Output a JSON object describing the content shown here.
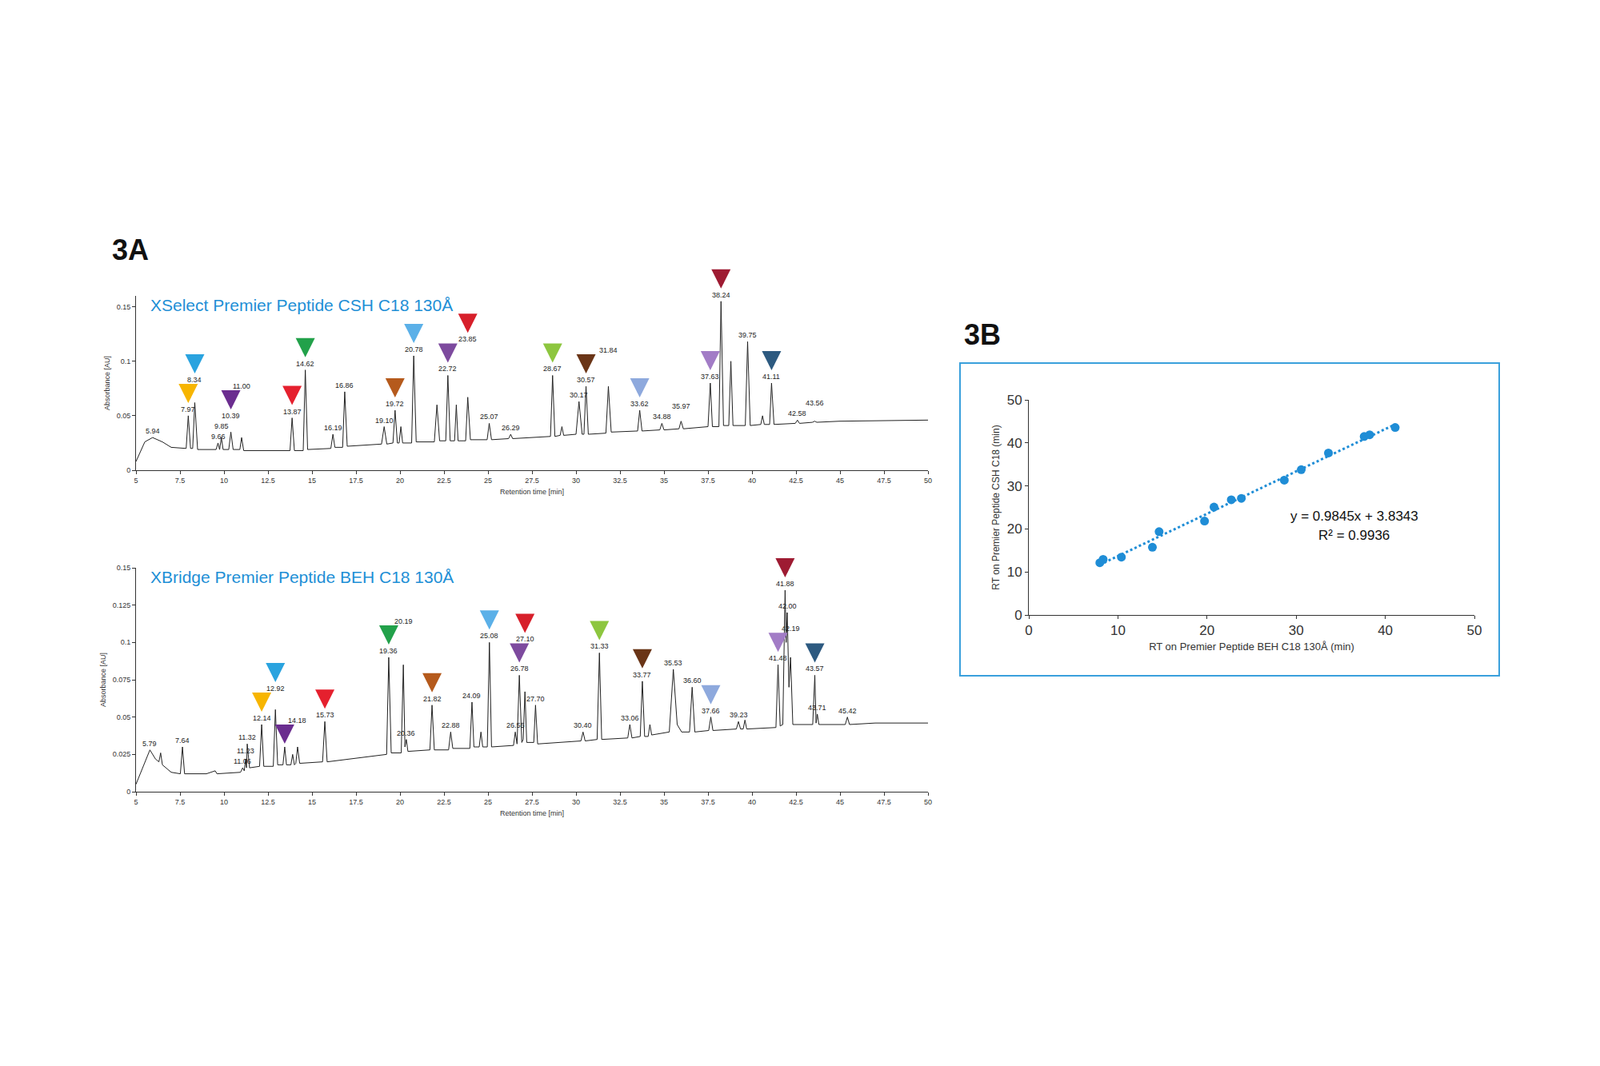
{
  "chart_data": [
    {
      "type": "line",
      "panel": "3A",
      "title": "XSelect Premier Peptide CSH C18 130Å",
      "xlabel": "Retention time [min]",
      "ylabel": "Absorbance [AU]",
      "xlim": [
        5,
        50
      ],
      "xticks": [
        5,
        7.5,
        10,
        12.5,
        15,
        17.5,
        20,
        22.5,
        25,
        27.5,
        30,
        32.5,
        35,
        37.5,
        40,
        42.5,
        45,
        47.5,
        50
      ],
      "ylim": [
        0,
        0.16
      ],
      "yticks": [
        0,
        0.05,
        0.1,
        0.15
      ],
      "grid": false,
      "color": "#222222",
      "x": [
        5,
        5.5,
        5.94,
        6.5,
        7,
        7.85,
        7.97,
        8.1,
        8.22,
        8.34,
        8.5,
        9.55,
        9.66,
        9.75,
        9.85,
        9.95,
        10.27,
        10.39,
        10.52,
        10.9,
        11.0,
        11.12,
        13.75,
        13.87,
        14.0,
        14.5,
        14.62,
        14.75,
        16.07,
        16.19,
        16.3,
        16.74,
        16.86,
        17.0,
        18.95,
        19.1,
        19.25,
        19.6,
        19.72,
        19.85,
        19.95,
        20.05,
        20.15,
        20.66,
        20.78,
        20.92,
        21.95,
        22.1,
        22.25,
        22.6,
        22.72,
        22.85,
        23.1,
        23.2,
        23.3,
        23.73,
        23.85,
        24.0,
        24.95,
        25.07,
        25.2,
        26.17,
        26.29,
        26.4,
        28.55,
        28.67,
        28.8,
        29.1,
        29.2,
        29.3,
        30.0,
        30.17,
        30.35,
        30.45,
        30.57,
        30.7,
        31.7,
        31.84,
        32.0,
        33.5,
        33.62,
        33.75,
        34.76,
        34.88,
        35.0,
        35.85,
        35.97,
        36.1,
        37.5,
        37.63,
        37.75,
        38.12,
        38.24,
        38.38,
        38.68,
        38.8,
        38.92,
        39.62,
        39.75,
        39.9,
        40.5,
        40.6,
        40.7,
        41.0,
        41.11,
        41.25,
        42.46,
        42.58,
        42.7,
        43.44,
        43.56,
        43.68,
        45,
        50
      ],
      "values": [
        0.008,
        0.026,
        0.03,
        0.026,
        0.021,
        0.02,
        0.05,
        0.02,
        0.02,
        0.062,
        0.019,
        0.019,
        0.025,
        0.019,
        0.03,
        0.019,
        0.019,
        0.035,
        0.019,
        0.019,
        0.03,
        0.018,
        0.018,
        0.048,
        0.018,
        0.018,
        0.092,
        0.019,
        0.02,
        0.033,
        0.021,
        0.021,
        0.072,
        0.022,
        0.024,
        0.04,
        0.024,
        0.025,
        0.055,
        0.025,
        0.025,
        0.04,
        0.025,
        0.025,
        0.105,
        0.026,
        0.026,
        0.06,
        0.027,
        0.027,
        0.087,
        0.027,
        0.027,
        0.06,
        0.027,
        0.027,
        0.067,
        0.028,
        0.028,
        0.043,
        0.028,
        0.029,
        0.033,
        0.029,
        0.031,
        0.087,
        0.031,
        0.032,
        0.04,
        0.032,
        0.033,
        0.063,
        0.033,
        0.033,
        0.077,
        0.033,
        0.034,
        0.077,
        0.035,
        0.036,
        0.055,
        0.036,
        0.037,
        0.043,
        0.037,
        0.038,
        0.045,
        0.038,
        0.04,
        0.08,
        0.04,
        0.04,
        0.155,
        0.041,
        0.041,
        0.1,
        0.041,
        0.041,
        0.118,
        0.041,
        0.042,
        0.05,
        0.042,
        0.042,
        0.08,
        0.042,
        0.043,
        0.046,
        0.043,
        0.044,
        0.045,
        0.044,
        0.045,
        0.046
      ],
      "peaks": {
        "x": [
          5.94,
          7.97,
          8.34,
          9.66,
          9.85,
          10.39,
          11.0,
          13.87,
          14.62,
          16.19,
          16.86,
          19.1,
          19.72,
          20.78,
          22.72,
          23.85,
          25.07,
          26.29,
          28.67,
          30.17,
          30.57,
          31.84,
          33.62,
          34.88,
          35.97,
          37.63,
          38.24,
          39.75,
          41.11,
          42.58,
          43.56
        ],
        "y": [
          0.03,
          0.05,
          0.062,
          0.025,
          0.03,
          0.035,
          0.03,
          0.048,
          0.092,
          0.033,
          0.072,
          0.04,
          0.055,
          0.105,
          0.087,
          0.067,
          0.043,
          0.033,
          0.087,
          0.063,
          0.077,
          0.077,
          0.055,
          0.043,
          0.045,
          0.08,
          0.155,
          0.118,
          0.08,
          0.046,
          0.045
        ],
        "labels": [
          "5.94",
          "7.97",
          "8.34",
          "9.66",
          "9.85",
          "10.39",
          "11.00",
          "13.87",
          "14.62",
          "16.19",
          "16.86",
          "19.10",
          "19.72",
          "20.78",
          "22.72",
          "23.85",
          "25.07",
          "26.29",
          "28.67",
          "30.17",
          "30.57",
          "31.84",
          "33.62",
          "34.88",
          "35.97",
          "37.63",
          "38.24",
          "39.75",
          "41.11",
          "42.58",
          "43.56"
        ]
      },
      "arrows": {
        "x": [
          7.97,
          8.34,
          10.39,
          13.87,
          14.62,
          19.72,
          20.78,
          22.72,
          23.85,
          28.67,
          30.57,
          33.62,
          37.63,
          38.24,
          41.11
        ],
        "y": [
          0.05,
          0.062,
          0.035,
          0.048,
          0.092,
          0.055,
          0.105,
          0.087,
          0.067,
          0.087,
          0.077,
          0.055,
          0.08,
          0.155,
          0.08
        ],
        "colors": [
          "#f7b500",
          "#2aa3df",
          "#6b2d8f",
          "#e5202e",
          "#22a14a",
          "#b55a1c",
          "#5bb0e8",
          "#7d4a9e",
          "#d71f2a",
          "#8dc63f",
          "#6a3517",
          "#8ea9dd",
          "#a27cc6",
          "#9e1b32",
          "#2d5a80"
        ]
      }
    },
    {
      "type": "line",
      "title": "XBridge Premier Peptide BEH C18 130Å",
      "xlabel": "Retention time [min]",
      "ylabel": "Absorbance [AU]",
      "xlim": [
        5,
        50
      ],
      "xticks": [
        5,
        7.5,
        10,
        12.5,
        15,
        17.5,
        20,
        22.5,
        25,
        27.5,
        30,
        32.5,
        35,
        37.5,
        40,
        42.5,
        45,
        47.5,
        50
      ],
      "ylim": [
        0,
        0.15
      ],
      "yticks": [
        0,
        0.025,
        0.05,
        0.075,
        0.1,
        0.125,
        0.15
      ],
      "grid": false,
      "color": "#222222",
      "x": [
        5,
        5.5,
        5.79,
        6.1,
        6.3,
        6.4,
        6.5,
        7.0,
        7.52,
        7.64,
        7.76,
        9.0,
        9.5,
        9.6,
        10.94,
        11.06,
        11.15,
        11.23,
        11.28,
        11.32,
        11.45,
        12.02,
        12.14,
        12.26,
        12.8,
        12.92,
        13.05,
        13.35,
        13.45,
        13.55,
        13.8,
        13.9,
        14.0,
        14.08,
        14.18,
        14.3,
        15.6,
        15.73,
        15.86,
        19.24,
        19.36,
        19.5,
        20.07,
        20.19,
        20.28,
        20.36,
        20.45,
        21.7,
        21.82,
        21.95,
        22.76,
        22.88,
        23.0,
        23.97,
        24.09,
        24.2,
        24.5,
        24.6,
        24.7,
        24.96,
        25.08,
        25.2,
        26.45,
        26.55,
        26.65,
        26.78,
        26.92,
        27.0,
        27.1,
        27.2,
        27.6,
        27.7,
        27.82,
        30.28,
        30.4,
        30.52,
        31.2,
        31.33,
        31.46,
        32.94,
        33.06,
        33.18,
        33.65,
        33.77,
        33.9,
        34.1,
        34.2,
        34.3,
        35.3,
        35.53,
        35.75,
        36.0,
        36.45,
        36.6,
        36.75,
        37.54,
        37.66,
        37.78,
        39.11,
        39.23,
        39.35,
        39.5,
        39.6,
        39.7,
        41.36,
        41.48,
        41.6,
        41.75,
        41.88,
        41.94,
        42.0,
        42.1,
        42.19,
        42.32,
        43.45,
        43.57,
        43.64,
        43.71,
        43.8,
        45.3,
        45.42,
        45.54,
        47,
        50
      ],
      "values": [
        0.005,
        0.02,
        0.028,
        0.022,
        0.02,
        0.026,
        0.018,
        0.013,
        0.012,
        0.03,
        0.012,
        0.012,
        0.014,
        0.012,
        0.013,
        0.016,
        0.014,
        0.022,
        0.016,
        0.032,
        0.016,
        0.017,
        0.045,
        0.017,
        0.017,
        0.055,
        0.018,
        0.018,
        0.03,
        0.018,
        0.018,
        0.025,
        0.018,
        0.019,
        0.03,
        0.019,
        0.02,
        0.047,
        0.02,
        0.025,
        0.09,
        0.026,
        0.026,
        0.085,
        0.03,
        0.035,
        0.027,
        0.028,
        0.058,
        0.028,
        0.028,
        0.04,
        0.029,
        0.029,
        0.06,
        0.03,
        0.03,
        0.04,
        0.03,
        0.03,
        0.1,
        0.03,
        0.031,
        0.04,
        0.032,
        0.078,
        0.033,
        0.035,
        0.067,
        0.033,
        0.033,
        0.058,
        0.032,
        0.034,
        0.04,
        0.034,
        0.035,
        0.093,
        0.035,
        0.036,
        0.045,
        0.036,
        0.037,
        0.074,
        0.037,
        0.037,
        0.045,
        0.038,
        0.04,
        0.082,
        0.045,
        0.04,
        0.04,
        0.07,
        0.04,
        0.041,
        0.05,
        0.041,
        0.042,
        0.047,
        0.042,
        0.042,
        0.048,
        0.042,
        0.043,
        0.085,
        0.044,
        0.045,
        0.135,
        0.1,
        0.12,
        0.07,
        0.09,
        0.045,
        0.045,
        0.078,
        0.046,
        0.052,
        0.045,
        0.045,
        0.05,
        0.045,
        0.046,
        0.046
      ],
      "peaks": {
        "x": [
          5.79,
          7.64,
          11.06,
          11.23,
          11.32,
          12.14,
          12.92,
          14.18,
          15.73,
          19.36,
          20.19,
          20.36,
          21.82,
          22.88,
          24.09,
          25.08,
          26.55,
          26.78,
          27.1,
          27.7,
          30.4,
          31.33,
          33.06,
          33.77,
          35.53,
          36.6,
          37.66,
          39.23,
          41.48,
          41.88,
          42.0,
          42.19,
          43.57,
          43.71,
          45.42
        ],
        "y": [
          0.028,
          0.03,
          0.016,
          0.022,
          0.032,
          0.045,
          0.055,
          0.03,
          0.047,
          0.09,
          0.085,
          0.035,
          0.058,
          0.04,
          0.06,
          0.1,
          0.04,
          0.078,
          0.067,
          0.058,
          0.04,
          0.093,
          0.045,
          0.074,
          0.082,
          0.07,
          0.05,
          0.047,
          0.085,
          0.135,
          0.12,
          0.09,
          0.078,
          0.052,
          0.05
        ],
        "labels": [
          "5.79",
          "7.64",
          "11.06",
          "11.23",
          "11.32",
          "12.14",
          "12.92",
          "14.18",
          "15.73",
          "19.36",
          "20.19",
          "20.36",
          "21.82",
          "22.88",
          "24.09",
          "25.08",
          "26.55",
          "26.78",
          "27.10",
          "27.70",
          "30.40",
          "31.33",
          "33.06",
          "33.77",
          "35.53",
          "36.60",
          "37.66",
          "39.23",
          "41.48",
          "41.88",
          "42.00",
          "42.19",
          "43.57",
          "43.71",
          "45.42"
        ]
      },
      "arrows": {
        "x": [
          12.14,
          12.92,
          13.45,
          15.73,
          19.36,
          21.82,
          25.08,
          26.78,
          27.1,
          31.33,
          33.77,
          37.66,
          41.48,
          41.88,
          43.57
        ],
        "y": [
          0.045,
          0.055,
          0.03,
          0.047,
          0.09,
          0.058,
          0.1,
          0.078,
          0.067,
          0.093,
          0.074,
          0.05,
          0.085,
          0.135,
          0.078
        ],
        "colors": [
          "#f7b500",
          "#2aa3df",
          "#6b2d8f",
          "#e5202e",
          "#22a14a",
          "#b55a1c",
          "#5bb0e8",
          "#7d4a9e",
          "#d71f2a",
          "#8dc63f",
          "#6a3517",
          "#8ea9dd",
          "#a27cc6",
          "#9e1b32",
          "#2d5a80"
        ]
      }
    },
    {
      "type": "scatter",
      "panel": "3B",
      "xlabel": "RT on Premier Peptide BEH C18 130Å (min)",
      "ylabel": "RT on Premier Peptide CSH C18 (min)",
      "xlim": [
        0,
        50
      ],
      "xticks": [
        0,
        10,
        20,
        30,
        40,
        50
      ],
      "ylim": [
        0,
        50
      ],
      "yticks": [
        0,
        10,
        20,
        30,
        40,
        50
      ],
      "grid": false,
      "color": "#1f8dd6",
      "marker": "circle",
      "x": [
        7.97,
        8.34,
        10.39,
        13.87,
        14.62,
        19.72,
        20.78,
        22.72,
        23.85,
        28.67,
        30.57,
        33.62,
        37.63,
        38.24,
        41.11
      ],
      "values": [
        12.14,
        12.92,
        13.45,
        15.73,
        19.36,
        21.82,
        25.08,
        26.78,
        27.1,
        31.33,
        33.77,
        37.66,
        41.48,
        41.88,
        43.57
      ],
      "trendline": {
        "slope": 0.9845,
        "intercept": 3.8343,
        "line_style": "dotted"
      },
      "annotations": [
        "y = 0.9845x + 3.8343",
        "R² = 0.9936"
      ]
    }
  ]
}
